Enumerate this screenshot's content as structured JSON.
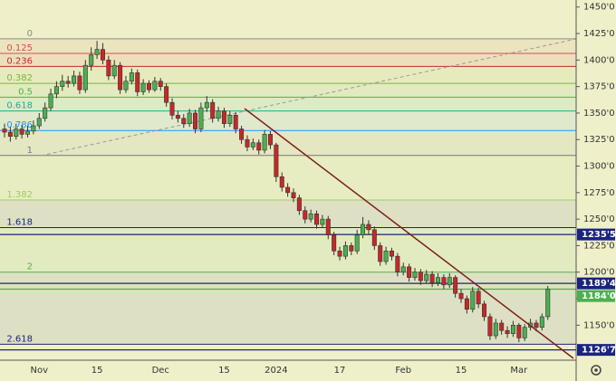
{
  "chart_data": {
    "type": "candlestick",
    "up_color": "#4caf50",
    "down_color": "#c62828",
    "categories": [
      null,
      null,
      null,
      null,
      null,
      null,
      "Nov",
      null,
      null,
      null,
      null,
      null,
      null,
      null,
      null,
      null,
      "15",
      null,
      null,
      null,
      null,
      null,
      null,
      null,
      null,
      null,
      null,
      "Dec",
      null,
      null,
      null,
      null,
      null,
      null,
      null,
      null,
      null,
      null,
      "15",
      null,
      null,
      null,
      null,
      null,
      null,
      null,
      null,
      "2024",
      null,
      null,
      null,
      null,
      null,
      null,
      null,
      null,
      null,
      null,
      "17",
      null,
      null,
      null,
      null,
      null,
      null,
      null,
      null,
      null,
      null,
      "Feb",
      null,
      null,
      null,
      null,
      null,
      null,
      null,
      null,
      null,
      "15",
      null,
      null,
      null,
      null,
      null,
      null,
      null,
      null,
      null,
      "Mar",
      null,
      null,
      null,
      null,
      null
    ],
    "open": [
      1335,
      1332,
      1328,
      1335,
      1330,
      1333,
      1338,
      1345,
      1355,
      1368,
      1375,
      1380,
      1378,
      1385,
      1372,
      1395,
      1405,
      1410,
      1400,
      1385,
      1395,
      1372,
      1380,
      1388,
      1370,
      1378,
      1372,
      1380,
      1375,
      1360,
      1348,
      1345,
      1340,
      1350,
      1335,
      1355,
      1360,
      1345,
      1352,
      1340,
      1348,
      1335,
      1325,
      1318,
      1322,
      1315,
      1330,
      1320,
      1290,
      1280,
      1275,
      1270,
      1258,
      1250,
      1255,
      1245,
      1250,
      1235,
      1220,
      1215,
      1225,
      1220,
      1235,
      1245,
      1240,
      1225,
      1210,
      1220,
      1215,
      1200,
      1205,
      1195,
      1200,
      1192,
      1198,
      1190,
      1195,
      1188,
      1195,
      1180,
      1175,
      1165,
      1182,
      1170,
      1158,
      1140,
      1152,
      1145,
      1142,
      1150,
      1138,
      1148,
      1152,
      1148,
      1158
    ],
    "high": [
      1340,
      1337,
      1340,
      1339,
      1338,
      1343,
      1350,
      1360,
      1373,
      1380,
      1386,
      1385,
      1390,
      1389,
      1400,
      1412,
      1418,
      1416,
      1404,
      1400,
      1398,
      1385,
      1392,
      1391,
      1382,
      1381,
      1384,
      1383,
      1378,
      1364,
      1352,
      1349,
      1354,
      1353,
      1360,
      1366,
      1363,
      1356,
      1355,
      1352,
      1351,
      1338,
      1329,
      1326,
      1325,
      1334,
      1333,
      1322,
      1294,
      1284,
      1279,
      1273,
      1262,
      1259,
      1258,
      1254,
      1253,
      1238,
      1224,
      1229,
      1228,
      1240,
      1252,
      1249,
      1243,
      1228,
      1224,
      1223,
      1218,
      1209,
      1208,
      1204,
      1203,
      1202,
      1201,
      1199,
      1198,
      1199,
      1197,
      1184,
      1178,
      1186,
      1185,
      1173,
      1161,
      1156,
      1155,
      1149,
      1154,
      1152,
      1151,
      1156,
      1155,
      1161,
      1187
    ],
    "low": [
      1327,
      1323,
      1325,
      1326,
      1327,
      1330,
      1335,
      1342,
      1352,
      1364,
      1371,
      1374,
      1375,
      1368,
      1369,
      1390,
      1401,
      1396,
      1381,
      1382,
      1368,
      1369,
      1377,
      1366,
      1367,
      1369,
      1370,
      1371,
      1356,
      1344,
      1341,
      1336,
      1337,
      1331,
      1332,
      1351,
      1341,
      1342,
      1336,
      1337,
      1331,
      1321,
      1314,
      1315,
      1311,
      1312,
      1316,
      1285,
      1276,
      1271,
      1266,
      1254,
      1246,
      1247,
      1241,
      1242,
      1231,
      1216,
      1211,
      1212,
      1216,
      1217,
      1232,
      1236,
      1221,
      1206,
      1207,
      1211,
      1196,
      1197,
      1191,
      1192,
      1188,
      1189,
      1186,
      1187,
      1184,
      1185,
      1176,
      1171,
      1161,
      1162,
      1166,
      1154,
      1136,
      1137,
      1141,
      1138,
      1139,
      1134,
      1135,
      1145,
      1144,
      1145,
      1155
    ],
    "close": [
      1332,
      1328,
      1335,
      1330,
      1333,
      1338,
      1345,
      1355,
      1368,
      1375,
      1380,
      1378,
      1385,
      1372,
      1395,
      1405,
      1410,
      1400,
      1385,
      1395,
      1372,
      1380,
      1388,
      1370,
      1378,
      1372,
      1380,
      1375,
      1360,
      1348,
      1345,
      1340,
      1350,
      1335,
      1355,
      1360,
      1345,
      1352,
      1340,
      1348,
      1335,
      1325,
      1318,
      1322,
      1315,
      1330,
      1320,
      1290,
      1280,
      1275,
      1270,
      1258,
      1250,
      1255,
      1245,
      1250,
      1235,
      1220,
      1215,
      1225,
      1220,
      1235,
      1245,
      1240,
      1225,
      1210,
      1220,
      1215,
      1200,
      1205,
      1195,
      1200,
      1192,
      1198,
      1190,
      1195,
      1188,
      1195,
      1180,
      1175,
      1165,
      1182,
      1170,
      1158,
      1140,
      1152,
      1145,
      1142,
      1150,
      1138,
      1148,
      1152,
      1148,
      1158,
      1184
    ],
    "ylim": [
      1117,
      1456.6
    ],
    "yticks": [
      {
        "value": 1450,
        "label": "1450'0"
      },
      {
        "value": 1425,
        "label": "1425'0"
      },
      {
        "value": 1400,
        "label": "1400'0"
      },
      {
        "value": 1375,
        "label": "1375'0"
      },
      {
        "value": 1350,
        "label": "1350'0"
      },
      {
        "value": 1325,
        "label": "1325'0"
      },
      {
        "value": 1300,
        "label": "1300'0"
      },
      {
        "value": 1275,
        "label": "1275'0"
      },
      {
        "value": 1250,
        "label": "1250'0"
      },
      {
        "value": 1225,
        "label": "1225'0"
      },
      {
        "value": 1200,
        "label": "1200'0"
      },
      {
        "value": 1175,
        "label": "1175'0"
      },
      {
        "value": 1150,
        "label": "1150'0"
      }
    ],
    "fib_levels": [
      {
        "ratio": 0,
        "value": 1420,
        "color": "#8a8a8a"
      },
      {
        "ratio": 0.125,
        "value": 1406.25,
        "color": "#d05050"
      },
      {
        "ratio": 0.236,
        "value": 1394.04,
        "color": "#c62828"
      },
      {
        "ratio": 0.382,
        "value": 1377.98,
        "color": "#7cb342"
      },
      {
        "ratio": 0.5,
        "value": 1365,
        "color": "#4caf50"
      },
      {
        "ratio": 0.618,
        "value": 1352.02,
        "color": "#26a69a"
      },
      {
        "ratio": 0.786,
        "value": 1333.54,
        "color": "#2196f3"
      },
      {
        "ratio": 1,
        "value": 1310,
        "color": "#777777"
      },
      {
        "ratio": 1.382,
        "value": 1267.98,
        "color": "#9ccc65"
      },
      {
        "ratio": 1.618,
        "value": 1242.02,
        "color": "#1a237e"
      },
      {
        "ratio": 2,
        "value": 1200,
        "color": "#4caf50"
      },
      {
        "ratio": 2.618,
        "value": 1132.02,
        "color": "#1a237e"
      }
    ],
    "price_tags": [
      {
        "value": 1235.5,
        "label": "1235'5",
        "color": "#1a237e"
      },
      {
        "value": 1189.4,
        "label": "1189'4",
        "color": "#1a237e"
      },
      {
        "value": 1184.0,
        "label": "1184'0",
        "color": "#4caf50"
      },
      {
        "value": 1126.7,
        "label": "1126'7",
        "color": "#1a237e"
      }
    ]
  }
}
